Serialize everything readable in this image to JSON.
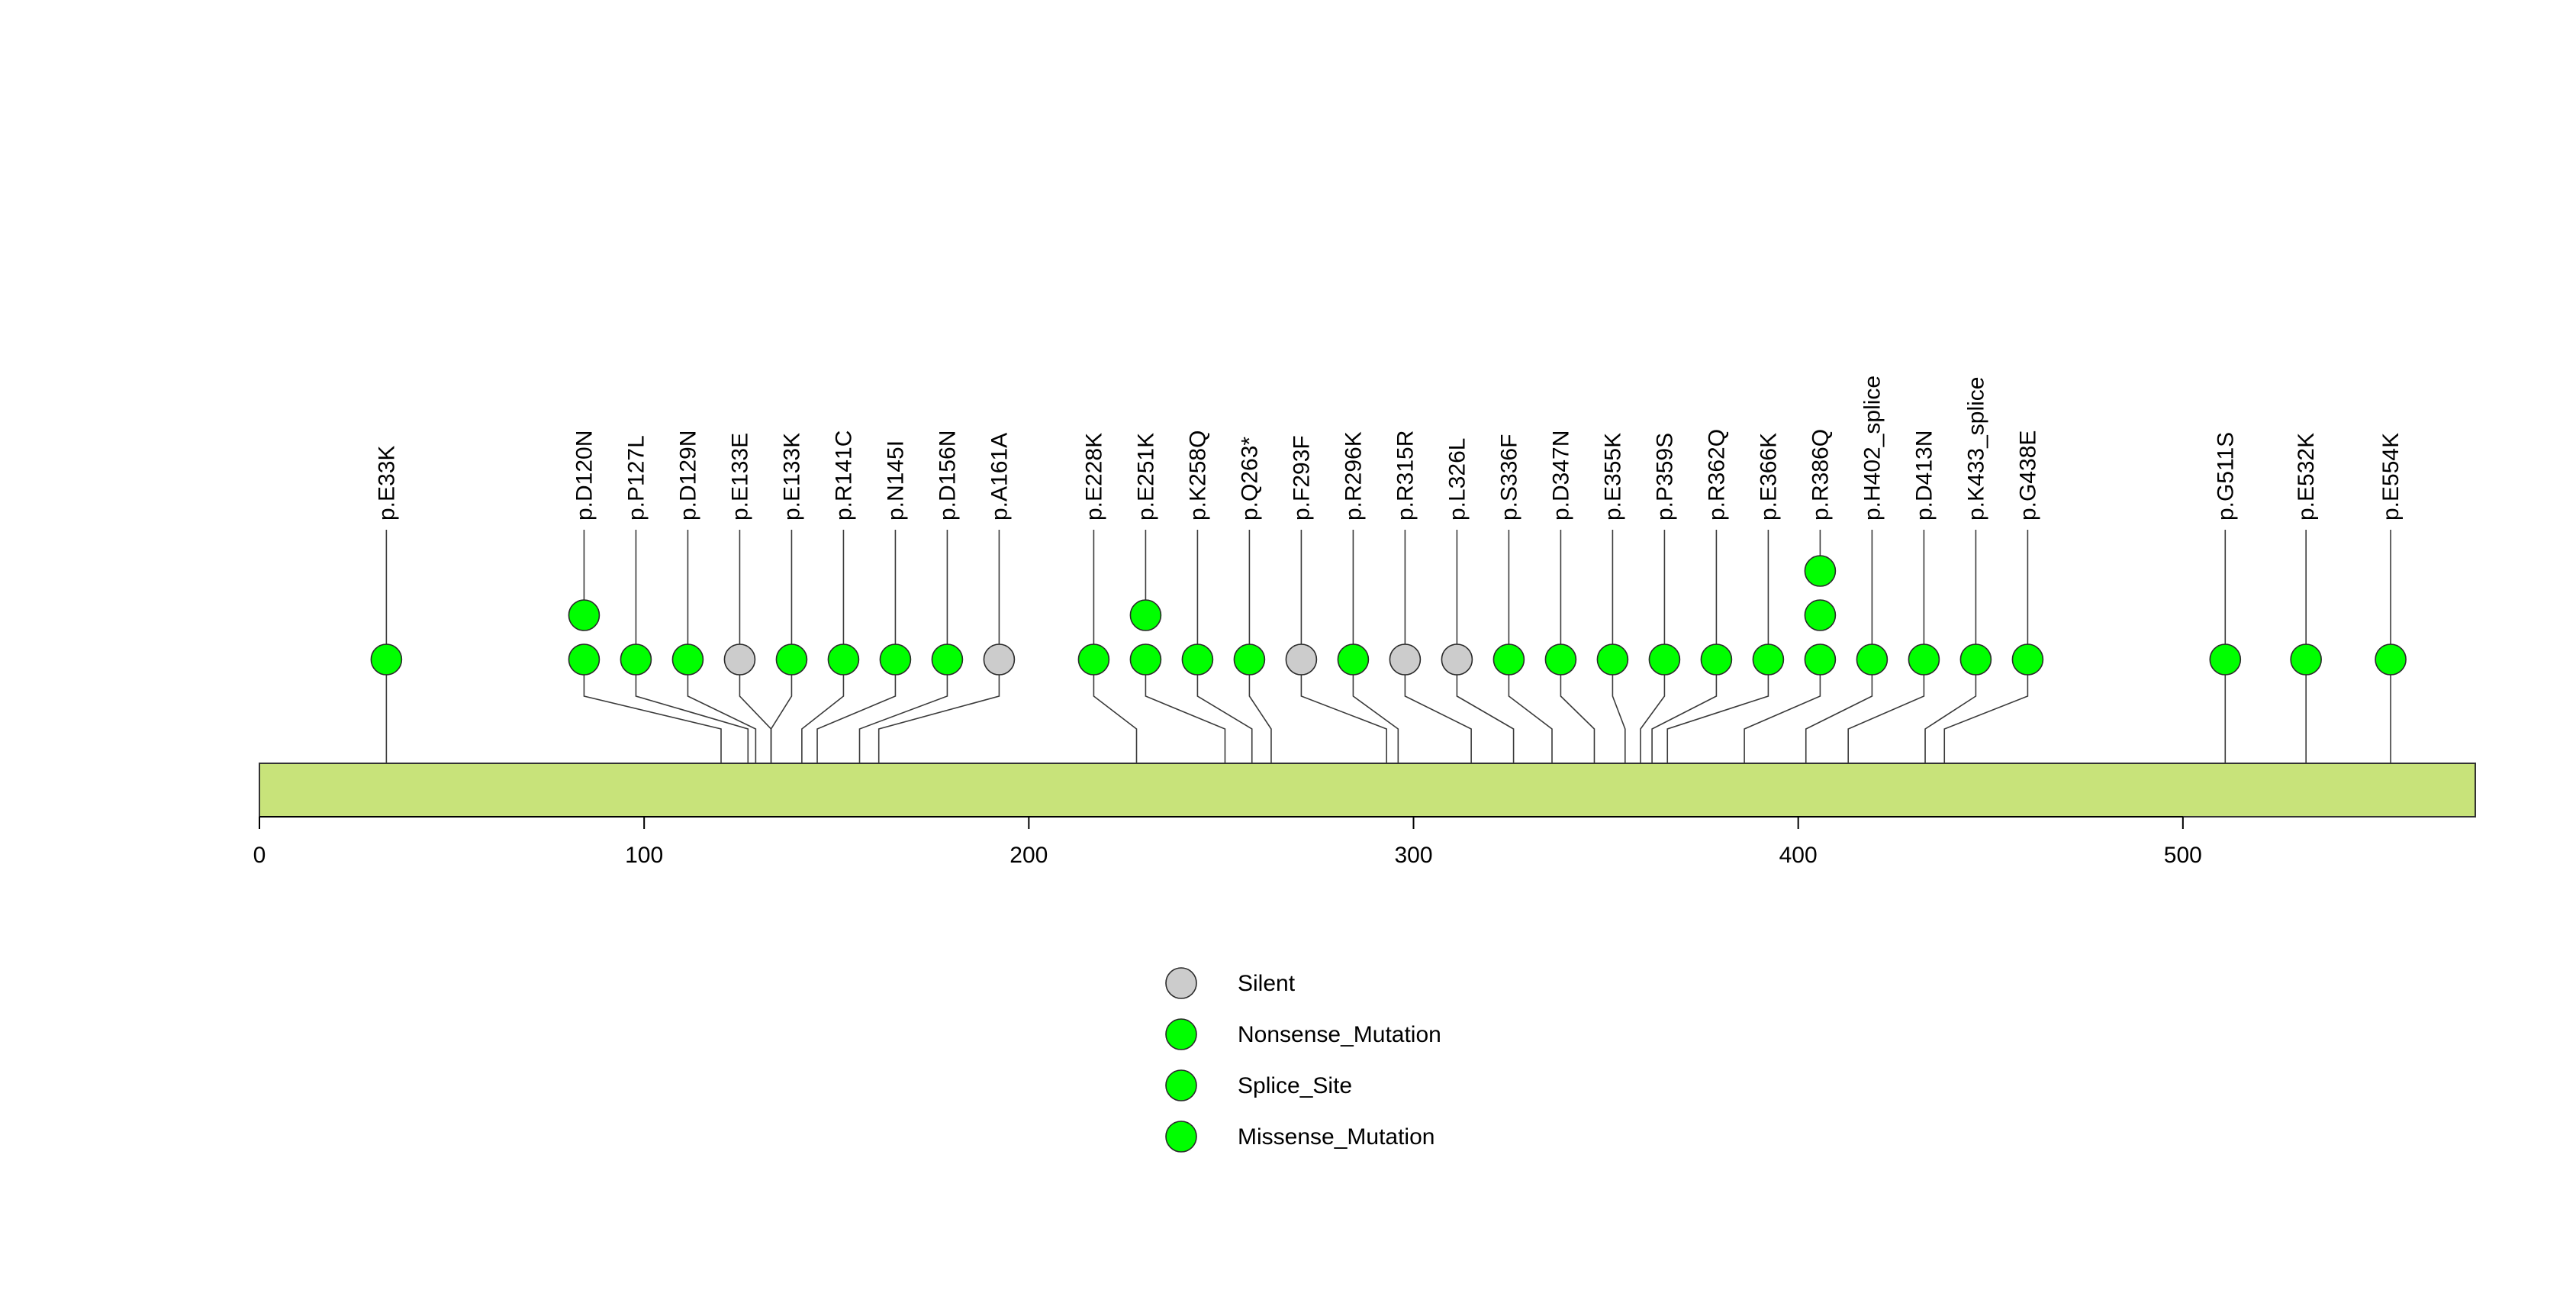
{
  "chart_data": {
    "type": "lollipop",
    "title": "",
    "protein_length": 576,
    "x_ticks": [
      0,
      100,
      200,
      300,
      400,
      500
    ],
    "x_tick_labels": [
      "0",
      "100",
      "200",
      "300",
      "400",
      "500"
    ],
    "bar_color": "#c8e37a",
    "mutations": [
      {
        "label": "p.E33K",
        "position": 33,
        "count": 1,
        "type": "Missense_Mutation"
      },
      {
        "label": "p.D120N",
        "position": 120,
        "count": 2,
        "type": "Missense_Mutation"
      },
      {
        "label": "p.P127L",
        "position": 127,
        "count": 1,
        "type": "Missense_Mutation"
      },
      {
        "label": "p.D129N",
        "position": 129,
        "count": 1,
        "type": "Missense_Mutation"
      },
      {
        "label": "p.E133E",
        "position": 133,
        "count": 1,
        "type": "Silent"
      },
      {
        "label": "p.E133K",
        "position": 133,
        "count": 1,
        "type": "Missense_Mutation"
      },
      {
        "label": "p.R141C",
        "position": 141,
        "count": 1,
        "type": "Missense_Mutation"
      },
      {
        "label": "p.N145I",
        "position": 145,
        "count": 1,
        "type": "Missense_Mutation"
      },
      {
        "label": "p.D156N",
        "position": 156,
        "count": 1,
        "type": "Missense_Mutation"
      },
      {
        "label": "p.A161A",
        "position": 161,
        "count": 1,
        "type": "Silent"
      },
      {
        "label": "p.E228K",
        "position": 228,
        "count": 1,
        "type": "Missense_Mutation"
      },
      {
        "label": "p.E251K",
        "position": 251,
        "count": 2,
        "type": "Missense_Mutation"
      },
      {
        "label": "p.K258Q",
        "position": 258,
        "count": 1,
        "type": "Missense_Mutation"
      },
      {
        "label": "p.Q263*",
        "position": 263,
        "count": 1,
        "type": "Nonsense_Mutation"
      },
      {
        "label": "p.F293F",
        "position": 293,
        "count": 1,
        "type": "Silent"
      },
      {
        "label": "p.R296K",
        "position": 296,
        "count": 1,
        "type": "Missense_Mutation"
      },
      {
        "label": "p.R315R",
        "position": 315,
        "count": 1,
        "type": "Silent"
      },
      {
        "label": "p.L326L",
        "position": 326,
        "count": 1,
        "type": "Silent"
      },
      {
        "label": "p.S336F",
        "position": 336,
        "count": 1,
        "type": "Missense_Mutation"
      },
      {
        "label": "p.D347N",
        "position": 347,
        "count": 1,
        "type": "Missense_Mutation"
      },
      {
        "label": "p.E355K",
        "position": 355,
        "count": 1,
        "type": "Missense_Mutation"
      },
      {
        "label": "p.P359S",
        "position": 359,
        "count": 1,
        "type": "Missense_Mutation"
      },
      {
        "label": "p.R362Q",
        "position": 362,
        "count": 1,
        "type": "Missense_Mutation"
      },
      {
        "label": "p.E366K",
        "position": 366,
        "count": 1,
        "type": "Missense_Mutation"
      },
      {
        "label": "p.R386Q",
        "position": 386,
        "count": 3,
        "type": "Missense_Mutation"
      },
      {
        "label": "p.H402_splice",
        "position": 402,
        "count": 1,
        "type": "Splice_Site"
      },
      {
        "label": "p.D413N",
        "position": 413,
        "count": 1,
        "type": "Missense_Mutation"
      },
      {
        "label": "p.K433_splice",
        "position": 433,
        "count": 1,
        "type": "Splice_Site"
      },
      {
        "label": "p.G438E",
        "position": 438,
        "count": 1,
        "type": "Missense_Mutation"
      },
      {
        "label": "p.G511S",
        "position": 511,
        "count": 1,
        "type": "Missense_Mutation"
      },
      {
        "label": "p.E532K",
        "position": 532,
        "count": 1,
        "type": "Missense_Mutation"
      },
      {
        "label": "p.E554K",
        "position": 554,
        "count": 1,
        "type": "Missense_Mutation"
      }
    ],
    "legend": [
      {
        "label": "Silent",
        "color": "#cccccc"
      },
      {
        "label": "Nonsense_Mutation",
        "color": "#00ff00"
      },
      {
        "label": "Splice_Site",
        "color": "#00ff00"
      },
      {
        "label": "Missense_Mutation",
        "color": "#00ff00"
      }
    ],
    "legend_placement": "bottom-center"
  }
}
